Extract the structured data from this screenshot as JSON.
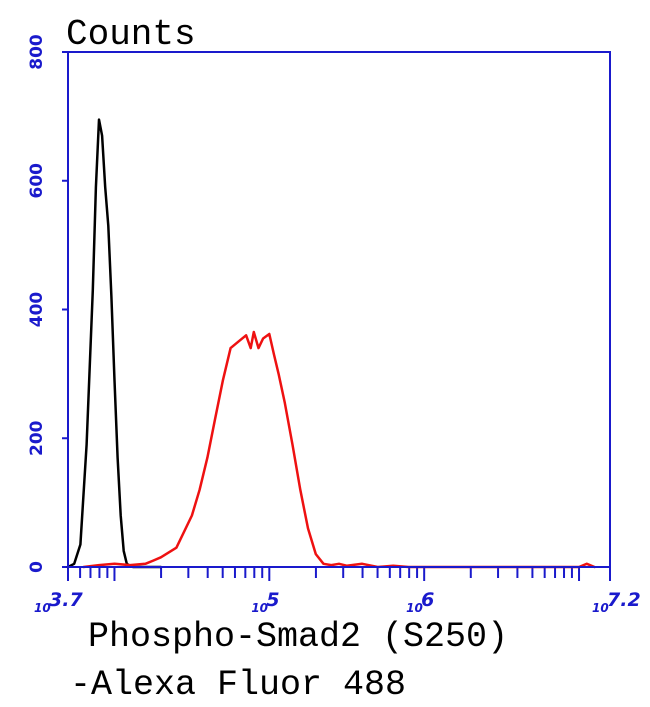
{
  "chart_data": {
    "type": "line",
    "title": "",
    "ylabel": "Counts",
    "xlabel_lines": [
      "Phospho-Smad2 (S250)",
      "-Alexa Fluor 488"
    ],
    "x_scale": "log10",
    "xlim_exponent": [
      3.7,
      7.2
    ],
    "ylim": [
      0,
      800
    ],
    "y_ticks": [
      0,
      200,
      400,
      600,
      800
    ],
    "x_tick_labels": [
      {
        "base": "10",
        "exp": "3.7",
        "value_exponent": 3.7
      },
      {
        "base": "10",
        "exp": "5",
        "value_exponent": 5
      },
      {
        "base": "10",
        "exp": "6",
        "value_exponent": 6
      },
      {
        "base": "10",
        "exp": "7.2",
        "value_exponent": 7.2
      }
    ],
    "grid": false,
    "legend": "none",
    "colors": {
      "axis": "#1a1acc",
      "series_control": "#000000",
      "series_sample": "#ee1111"
    },
    "series": [
      {
        "color": "#000000",
        "x_exponent": [
          3.7,
          3.74,
          3.78,
          3.82,
          3.86,
          3.88,
          3.9,
          3.92,
          3.94,
          3.96,
          3.98,
          4.0,
          4.02,
          4.04,
          4.06,
          4.08,
          4.1,
          4.12,
          4.16,
          4.2,
          4.24,
          4.3
        ],
        "values": [
          0,
          5,
          35,
          190,
          430,
          590,
          695,
          670,
          590,
          530,
          420,
          290,
          170,
          80,
          25,
          5,
          2,
          0,
          0,
          0,
          0,
          0
        ]
      },
      {
        "color": "#ee1111",
        "x_exponent": [
          3.8,
          3.9,
          4.0,
          4.1,
          4.2,
          4.25,
          4.3,
          4.4,
          4.5,
          4.55,
          4.6,
          4.65,
          4.7,
          4.75,
          4.8,
          4.85,
          4.88,
          4.9,
          4.93,
          4.96,
          5.0,
          5.03,
          5.06,
          5.1,
          5.15,
          5.2,
          5.25,
          5.3,
          5.35,
          5.4,
          5.45,
          5.5,
          5.6,
          5.7,
          5.8,
          5.9,
          6.0,
          6.5,
          7.0,
          7.05,
          7.1
        ],
        "values": [
          0,
          3,
          5,
          3,
          5,
          10,
          15,
          30,
          80,
          120,
          170,
          230,
          290,
          340,
          350,
          360,
          340,
          365,
          340,
          355,
          362,
          330,
          300,
          255,
          190,
          120,
          60,
          20,
          5,
          3,
          5,
          2,
          5,
          0,
          2,
          0,
          0,
          0,
          0,
          5,
          0
        ]
      }
    ]
  }
}
